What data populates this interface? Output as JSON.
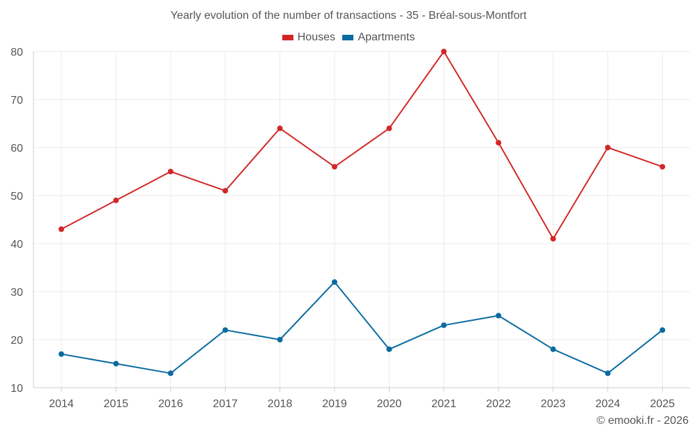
{
  "chart_data": {
    "type": "line",
    "title": "Yearly evolution of the number of transactions - 35 - Bréal-sous-Montfort",
    "categories": [
      "2014",
      "2015",
      "2016",
      "2017",
      "2018",
      "2019",
      "2020",
      "2021",
      "2022",
      "2023",
      "2024",
      "2025"
    ],
    "series": [
      {
        "name": "Houses",
        "color": "#d32727",
        "values": [
          43,
          49,
          55,
          51,
          64,
          56,
          64,
          80,
          61,
          41,
          60,
          56
        ]
      },
      {
        "name": "Apartments",
        "color": "#0b6ba0",
        "values": [
          17,
          15,
          13,
          22,
          20,
          32,
          18,
          23,
          25,
          18,
          13,
          22
        ]
      }
    ],
    "ylim": [
      10,
      80
    ],
    "yticks": [
      10,
      20,
      30,
      40,
      50,
      60,
      70,
      80
    ],
    "xlabel": "",
    "ylabel": "",
    "grid": true,
    "legend_position": "top-center"
  },
  "footer": "© emooki.fr - 2026"
}
